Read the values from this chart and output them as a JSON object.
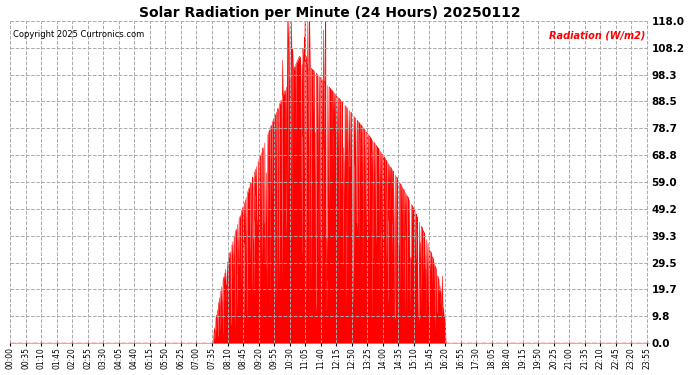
{
  "title": "Solar Radiation per Minute (24 Hours) 20250112",
  "copyright_text": "Copyright 2025 Curtronics.com",
  "legend_text": "Radiation (W/m2)",
  "legend_color": "#ff0000",
  "background_color": "#ffffff",
  "plot_bg_color": "#ffffff",
  "grid_color": "#aaaaaa",
  "bar_color": "#ff0000",
  "zero_line_color": "#ff0000",
  "y_ticks": [
    0.0,
    9.8,
    19.7,
    29.5,
    39.3,
    49.2,
    59.0,
    68.8,
    78.7,
    88.5,
    98.3,
    108.2,
    118.0
  ],
  "y_max": 118.0,
  "y_min": 0.0,
  "total_minutes": 1440,
  "x_tick_interval": 35,
  "x_tick_labels": [
    "00:00",
    "00:35",
    "01:10",
    "01:45",
    "02:20",
    "02:55",
    "03:30",
    "04:05",
    "04:40",
    "05:15",
    "05:50",
    "06:25",
    "07:00",
    "07:35",
    "08:10",
    "08:45",
    "09:20",
    "09:55",
    "10:30",
    "11:05",
    "11:40",
    "12:15",
    "12:50",
    "13:25",
    "14:00",
    "14:35",
    "15:10",
    "15:45",
    "16:20",
    "16:55",
    "17:30",
    "18:05",
    "18:40",
    "19:15",
    "19:50",
    "20:25",
    "21:00",
    "21:35",
    "22:10",
    "22:45",
    "23:20",
    "23:55"
  ],
  "sunrise_minute": 460,
  "sunset_minute": 985,
  "peak_minute": 665
}
